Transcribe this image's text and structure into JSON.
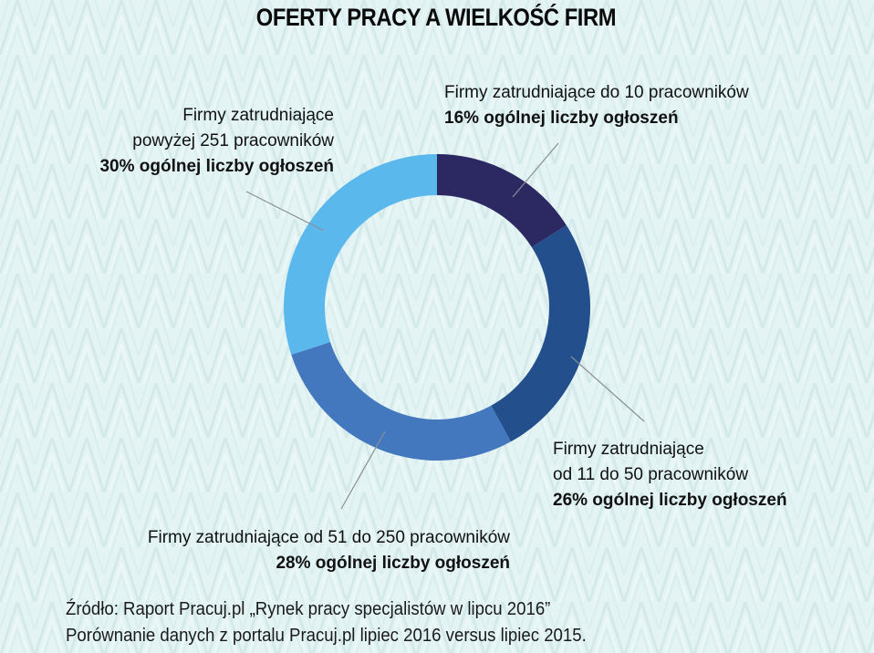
{
  "title": "OFERTY PRACY A WIELKOŚĆ FIRM",
  "labels": {
    "size_upto_10": {
      "line1": "Firmy zatrudniające do 10 pracowników",
      "pct": "16% ogólnej liczby ogłoszeń"
    },
    "size_11_50": {
      "line1": "Firmy zatrudniające",
      "line2": "od 11 do 50 pracowników",
      "pct": "26% ogólnej liczby ogłoszeń"
    },
    "size_51_250": {
      "line1": "Firmy zatrudniające od 51 do 250 pracowników",
      "pct": "28% ogólnej liczby ogłoszeń"
    },
    "size_251_plus": {
      "line1": "Firmy zatrudniające",
      "line2": "powyżej 251 pracowników",
      "pct": "30% ogólnej liczby ogłoszeń"
    }
  },
  "source": {
    "line1": "Źródło: Raport Pracuj.pl „Rynek pracy specjalistów w lipcu 2016”",
    "line2": "Porównanie danych z portalu Pracuj.pl lipiec 2016 versus lipiec 2015."
  },
  "colors": {
    "background": "#e4f3f3",
    "segment_upto_10": "#2b2862",
    "segment_11_50": "#234f8c",
    "segment_51_250": "#4378be",
    "segment_251_plus": "#5bb8ec",
    "leader_line": "#8a8f96"
  },
  "chart_data": {
    "type": "pie",
    "variant": "donut",
    "title": "OFERTY PRACY A WIELKOŚĆ FIRM",
    "unit": "% ogólnej liczby ogłoszeń",
    "start_angle": "12 o'clock",
    "direction": "clockwise",
    "categories": [
      "Firmy zatrudniające do 10 pracowników",
      "Firmy zatrudniające od 11 do 50 pracowników",
      "Firmy zatrudniające od 51 do 250 pracowników",
      "Firmy zatrudniające powyżej 251 pracowników"
    ],
    "values": [
      16,
      26,
      28,
      30
    ],
    "colors": [
      "#2b2862",
      "#234f8c",
      "#4378be",
      "#5bb8ec"
    ],
    "legend": "none (callout labels with leader lines)",
    "source": "Raport Pracuj.pl „Rynek pracy specjalistów w lipcu 2016”; porównanie lipiec 2016 vs lipiec 2015"
  }
}
